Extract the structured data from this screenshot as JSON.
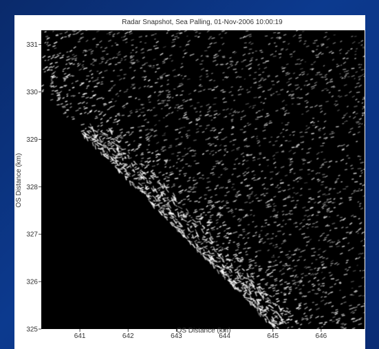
{
  "chart_data": {
    "type": "heatmap",
    "title": "Radar Snapshot, Sea Palling, 01-Nov-2006 10:00:19",
    "xlabel": "OS Distance (km)",
    "ylabel": "OS Distance (km)",
    "xlim": [
      640.2,
      646.9
    ],
    "ylim": [
      325,
      331.3
    ],
    "x_ticks": [
      641,
      642,
      643,
      644,
      645,
      646
    ],
    "y_ticks": [
      325,
      326,
      327,
      328,
      329,
      330,
      331
    ],
    "x_tick_labels": [
      "641",
      "642",
      "643",
      "644",
      "645",
      "646"
    ],
    "y_tick_labels": [
      "325",
      "326",
      "327",
      "328",
      "329",
      "330",
      "331"
    ],
    "grid": false,
    "colors": {
      "background": "#000000",
      "echo": "#ffffff",
      "page": "#0c3a8f",
      "figure": "#ffffff"
    }
  }
}
